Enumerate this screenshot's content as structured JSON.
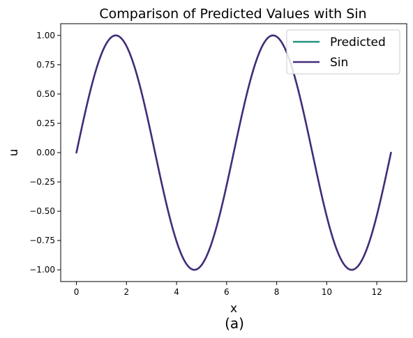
{
  "chart_data": {
    "type": "line",
    "title": "Comparison of Predicted Values with Sin",
    "xlabel": "x",
    "ylabel": "u",
    "caption": "(a)",
    "xlim": [
      -0.628,
      13.195
    ],
    "ylim": [
      -1.1,
      1.1
    ],
    "x_ticks": [
      0,
      2,
      4,
      6,
      8,
      10,
      12
    ],
    "x_tick_labels": [
      "0",
      "2",
      "4",
      "6",
      "8",
      "10",
      "12"
    ],
    "y_ticks": [
      1.0,
      0.75,
      0.5,
      0.25,
      0.0,
      -0.25,
      -0.5,
      -0.75,
      -1.0
    ],
    "y_tick_labels": [
      "1.00",
      "0.75",
      "0.50",
      "0.25",
      "0.00",
      "−0.25",
      "−0.50",
      "−0.75",
      "−1.00"
    ],
    "grid": false,
    "legend_position": "top-right",
    "series": [
      {
        "name": "Predicted",
        "color": "#21917f",
        "function": "sin(x)",
        "x_start": 0,
        "x_end": 12.566,
        "x": [
          0,
          0.785,
          1.571,
          2.356,
          3.142,
          3.927,
          4.712,
          5.498,
          6.283,
          7.069,
          7.854,
          8.639,
          9.425,
          10.21,
          10.996,
          11.781,
          12.566
        ],
        "y": [
          0.0,
          0.707,
          1.0,
          0.707,
          0.0,
          -0.707,
          -1.0,
          -0.707,
          0.0,
          0.707,
          1.0,
          0.707,
          0.0,
          -0.707,
          -1.0,
          -0.707,
          0.0
        ]
      },
      {
        "name": "Sin",
        "color": "#472a79",
        "function": "sin(x)",
        "x_start": 0,
        "x_end": 12.566,
        "x": [
          0,
          0.785,
          1.571,
          2.356,
          3.142,
          3.927,
          4.712,
          5.498,
          6.283,
          7.069,
          7.854,
          8.639,
          9.425,
          10.21,
          10.996,
          11.781,
          12.566
        ],
        "y": [
          0.0,
          0.707,
          1.0,
          0.707,
          0.0,
          -0.707,
          -1.0,
          -0.707,
          0.0,
          0.707,
          1.0,
          0.707,
          0.0,
          -0.707,
          -1.0,
          -0.707,
          0.0
        ]
      }
    ]
  }
}
